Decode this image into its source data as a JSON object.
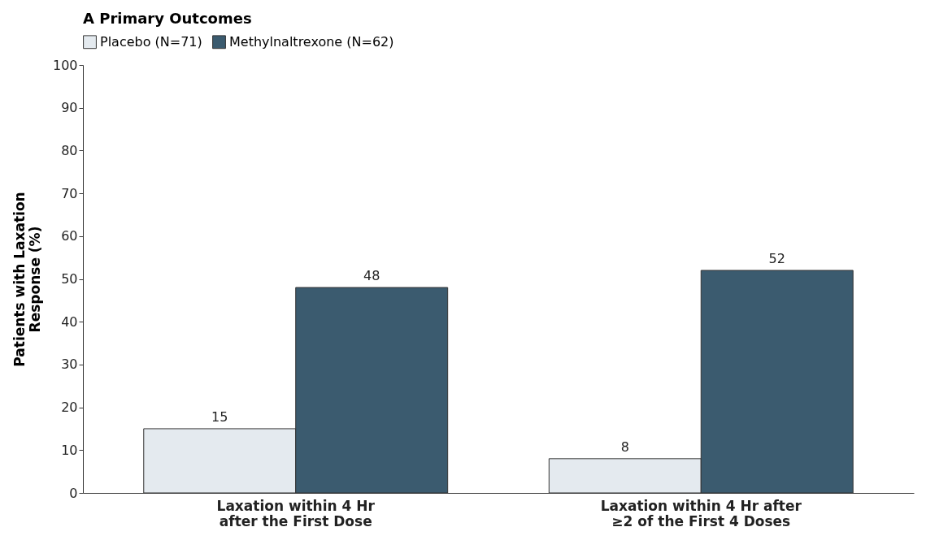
{
  "chart_data": {
    "type": "bar",
    "title": "A  Primary Outcomes",
    "ylabel": "Patients with Laxation\nResponse (%)",
    "categories": [
      "Laxation within 4 Hr\nafter the First Dose",
      "Laxation within 4 Hr after\n≥2 of the First 4 Doses"
    ],
    "series": [
      {
        "name": "Placebo (N=71)",
        "color": "#e4eaef",
        "values": [
          15,
          8
        ]
      },
      {
        "name": "Methylnaltrexone (N=62)",
        "color": "#3b5b6f",
        "values": [
          48,
          52
        ]
      }
    ],
    "ylim": [
      0,
      100
    ],
    "yticks": [
      0,
      10,
      20,
      30,
      40,
      50,
      60,
      70,
      80,
      90,
      100
    ],
    "data_labels": true,
    "grid": false,
    "legend": "top"
  }
}
